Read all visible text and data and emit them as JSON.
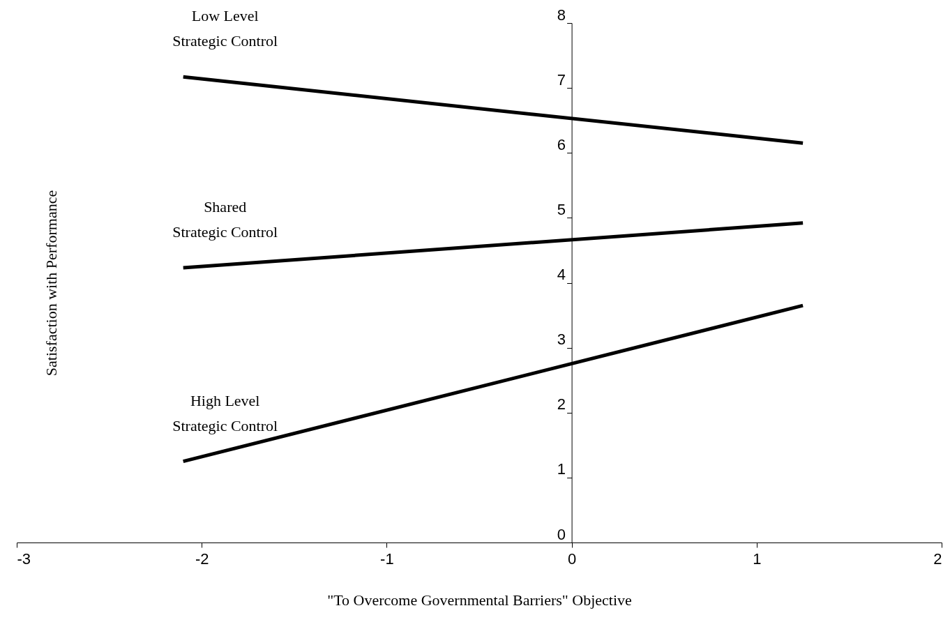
{
  "chart_data": {
    "type": "line",
    "xlabel": "\"To Overcome Governmental Barriers\" Objective",
    "ylabel": "Satisfaction with Performance",
    "x": [
      -2.1,
      1.25
    ],
    "series": [
      {
        "name": "Low Level\nStrategic Control",
        "color": "#000000",
        "values": [
          7.17,
          6.15
        ]
      },
      {
        "name": "Shared\nStrategic Control",
        "color": "#000000",
        "values": [
          4.23,
          4.92
        ]
      },
      {
        "name": "High Level\nStrategic Control",
        "color": "#000000",
        "values": [
          1.25,
          3.65
        ]
      }
    ],
    "xlim": [
      -3,
      2
    ],
    "xticks": [
      -3,
      -2,
      -1,
      0,
      1,
      2
    ],
    "ylim": [
      0,
      8
    ],
    "yticks": [
      0,
      1,
      2,
      3,
      4,
      5,
      6,
      7,
      8
    ],
    "grid": false,
    "marker": "none",
    "line_style": "solid"
  }
}
